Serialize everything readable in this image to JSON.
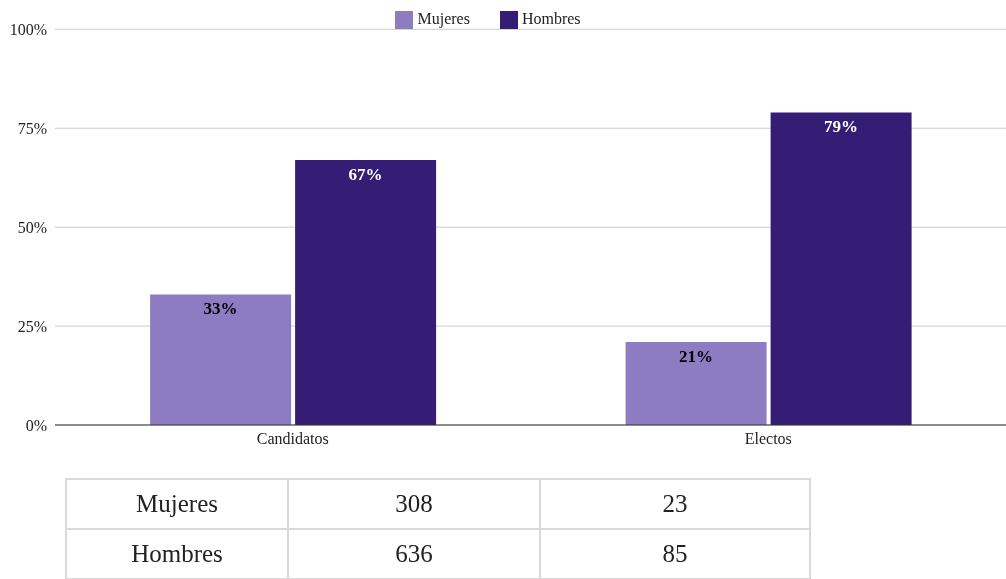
{
  "chart_data": {
    "type": "bar",
    "categories": [
      "Candidatos",
      "Electos"
    ],
    "series": [
      {
        "name": "Mujeres",
        "color": "#8e7cc3",
        "values": [
          33,
          21
        ],
        "value_labels": [
          "33%",
          "21%"
        ]
      },
      {
        "name": "Hombres",
        "color": "#351c75",
        "values": [
          67,
          79
        ],
        "value_labels": [
          "67%",
          "79%"
        ]
      }
    ],
    "ylim": [
      0,
      100
    ],
    "yticks": [
      {
        "value": 0,
        "label": "0%"
      },
      {
        "value": 25,
        "label": "25%"
      },
      {
        "value": 50,
        "label": "50%"
      },
      {
        "value": 75,
        "label": "75%"
      },
      {
        "value": 100,
        "label": "100%"
      }
    ],
    "grid": "y",
    "legend": "top",
    "annotations": [
      "Mujeres",
      "308",
      "23",
      "Hombres",
      "636",
      "85"
    ]
  }
}
